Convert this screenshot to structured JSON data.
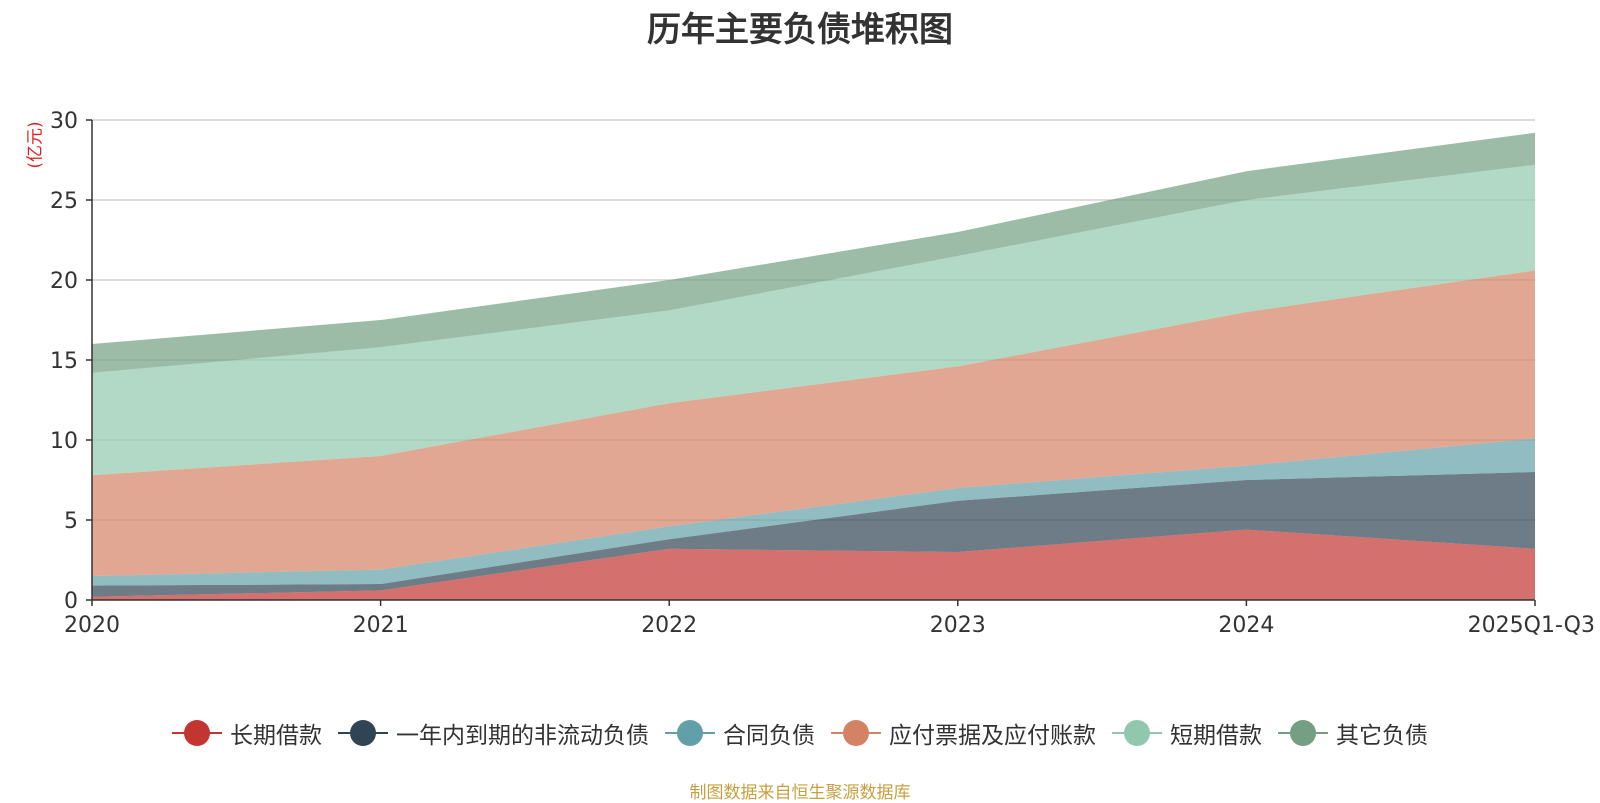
{
  "chart_data": {
    "type": "area",
    "stacked": true,
    "title": "历年主要负债堆积图",
    "unit": "(亿元)",
    "source": "制图数据来自恒生聚源数据库",
    "categories": [
      "2020",
      "2021",
      "2022",
      "2023",
      "2024",
      "2025Q1-Q3"
    ],
    "ylim": [
      0,
      30
    ],
    "yticks": [
      0,
      5,
      10,
      15,
      20,
      25,
      30
    ],
    "series": [
      {
        "name": "长期借款",
        "color": "#c23531",
        "values": [
          0.2,
          0.6,
          3.2,
          3.0,
          4.4,
          3.2
        ]
      },
      {
        "name": "一年内到期的非流动负债",
        "color": "#2f4554",
        "values": [
          0.7,
          0.4,
          0.6,
          3.2,
          3.1,
          4.8
        ]
      },
      {
        "name": "合同负债",
        "color": "#61a0a8",
        "values": [
          0.6,
          0.9,
          0.8,
          0.8,
          0.9,
          2.1
        ]
      },
      {
        "name": "应付票据及应付账款",
        "color": "#d48265",
        "values": [
          6.3,
          7.1,
          7.7,
          7.6,
          9.6,
          10.5
        ]
      },
      {
        "name": "短期借款",
        "color": "#91c7ae",
        "values": [
          6.4,
          6.8,
          5.8,
          6.9,
          7.0,
          6.6
        ]
      },
      {
        "name": "其它负债",
        "color": "#749f83",
        "values": [
          1.8,
          1.7,
          1.9,
          1.5,
          1.8,
          2.0
        ]
      }
    ]
  }
}
